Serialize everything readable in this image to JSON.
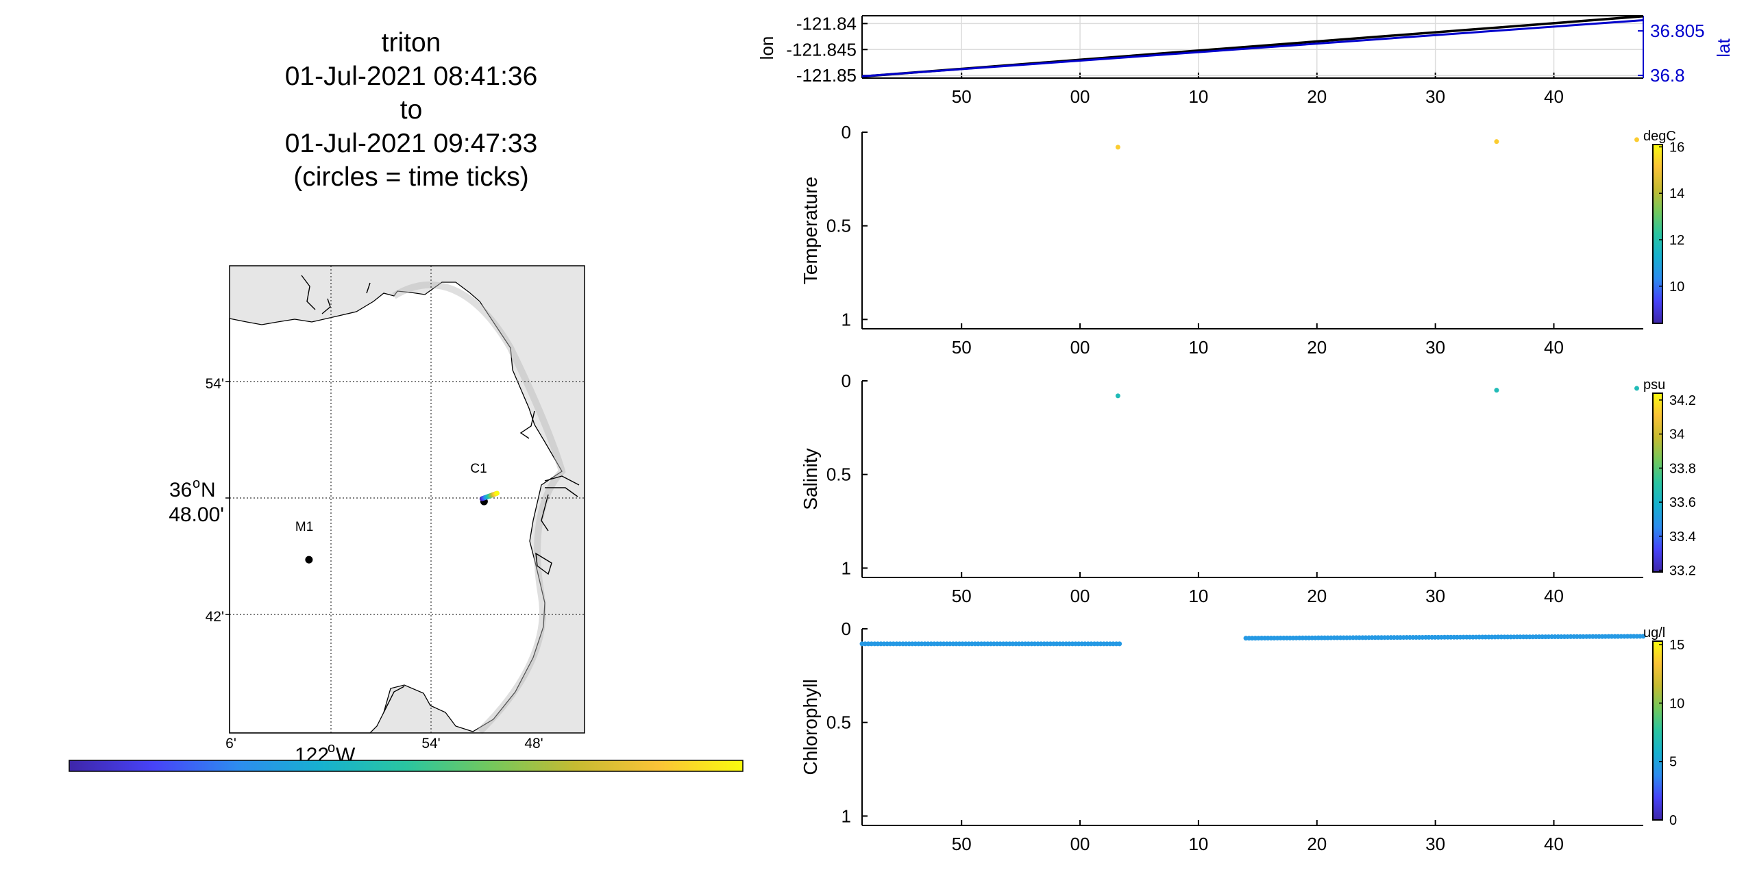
{
  "title": {
    "lines": [
      "triton",
      "01-Jul-2021 08:41:36",
      "to",
      "01-Jul-2021 09:47:33",
      "(circles = time ticks)"
    ]
  },
  "colors": {
    "map_land": "#e6e6e6",
    "lon_line": "#000000",
    "lat_line": "#0000cc",
    "lat_axis": "#0000cc",
    "parula": [
      "#3e26a8",
      "#4743f8",
      "#2d8cef",
      "#17b1cf",
      "#2ac5a0",
      "#73c85d",
      "#c5bb32",
      "#fbc337",
      "#f9fb0e"
    ]
  },
  "map": {
    "lat_labels": [
      "54'",
      "48.00'",
      "42'"
    ],
    "lat_degree_label": "36",
    "lat_degree_suffix": "o",
    "lat_hemisphere": "N",
    "lon_labels": [
      "6'",
      "54'",
      "48'"
    ],
    "lon_degree_label": "122",
    "lon_degree_suffix": "o",
    "lon_hemisphere": "W",
    "stations": [
      {
        "name": "C1",
        "lon": -121.847,
        "lat": 36.797
      },
      {
        "name": "M1",
        "lon": -122.022,
        "lat": 36.747
      }
    ]
  },
  "chart_data": [
    {
      "type": "line",
      "name_panel": "position",
      "xticklabels": [
        "50",
        "00",
        "10",
        "20",
        "30",
        "40"
      ],
      "xlim": [
        "08:41:36",
        "09:47:33"
      ],
      "ylabel_left": "lon",
      "ylabel_right": "lat",
      "yticks_left": [
        -121.84,
        -121.845,
        -121.85
      ],
      "yticklabels_left": [
        "-121.84",
        "-121.845",
        "-121.85"
      ],
      "ylim_left": [
        -121.8505,
        -121.8385
      ],
      "yticks_right": [
        36.805,
        36.8
      ],
      "yticklabels_right": [
        "36.805",
        "36.8"
      ],
      "ylim_right": [
        36.7997,
        36.8067
      ],
      "grid": true,
      "series": [
        {
          "axis": "left",
          "x": [
            "08:41:36",
            "09:47:33"
          ],
          "y": [
            -121.8502,
            -121.8386
          ]
        },
        {
          "axis": "right",
          "x": [
            "08:41:36",
            "09:47:33"
          ],
          "y": [
            36.7999,
            36.8062
          ]
        }
      ]
    },
    {
      "type": "scatter",
      "ylabel": "Temperature",
      "yticklabels": [
        "0",
        "0.5",
        "1"
      ],
      "ylim": [
        0,
        1.05
      ],
      "yreverse": true,
      "xticklabels": [
        "50",
        "00",
        "10",
        "20",
        "30",
        "40"
      ],
      "colorbar_unit": "degC",
      "colorbar_ticks": [
        "16",
        "14",
        "12",
        "10"
      ],
      "clim": [
        8.4,
        16.1
      ],
      "points": [
        {
          "x": "09:03:12",
          "y": 0.08,
          "c": 15.3
        },
        {
          "x": "09:35:10",
          "y": 0.05,
          "c": 15.3
        },
        {
          "x": "09:47:00",
          "y": 0.04,
          "c": 15.3
        }
      ]
    },
    {
      "type": "scatter",
      "ylabel": "Salinity",
      "yticklabels": [
        "0",
        "0.5",
        "1"
      ],
      "ylim": [
        0,
        1.05
      ],
      "yreverse": true,
      "xticklabels": [
        "50",
        "00",
        "10",
        "20",
        "30",
        "40"
      ],
      "colorbar_unit": "psu",
      "colorbar_ticks": [
        "34.2",
        "34",
        "33.8",
        "33.6",
        "33.4",
        "33.2"
      ],
      "clim": [
        33.19,
        34.24
      ],
      "points": [
        {
          "x": "09:03:12",
          "y": 0.08,
          "c": 33.65
        },
        {
          "x": "09:35:10",
          "y": 0.05,
          "c": 33.65
        },
        {
          "x": "09:47:00",
          "y": 0.04,
          "c": 33.65
        }
      ]
    },
    {
      "type": "scatter",
      "ylabel": "Chlorophyll",
      "yticklabels": [
        "0",
        "0.5",
        "1"
      ],
      "ylim": [
        0,
        1.05
      ],
      "yreverse": true,
      "xticklabels": [
        "50",
        "00",
        "10",
        "20",
        "30",
        "40"
      ],
      "colorbar_unit": "ug/l",
      "colorbar_ticks": [
        "15",
        "10",
        "5",
        "0"
      ],
      "clim": [
        0,
        15.3
      ],
      "segments": [
        {
          "x_start": "08:41:36",
          "x_end": "09:03:20",
          "y_start": 0.08,
          "y_end": 0.08,
          "c": 4.5
        },
        {
          "x_start": "09:14:00",
          "x_end": "09:47:33",
          "y_start": 0.05,
          "y_end": 0.04,
          "c": 4.5
        }
      ]
    }
  ]
}
